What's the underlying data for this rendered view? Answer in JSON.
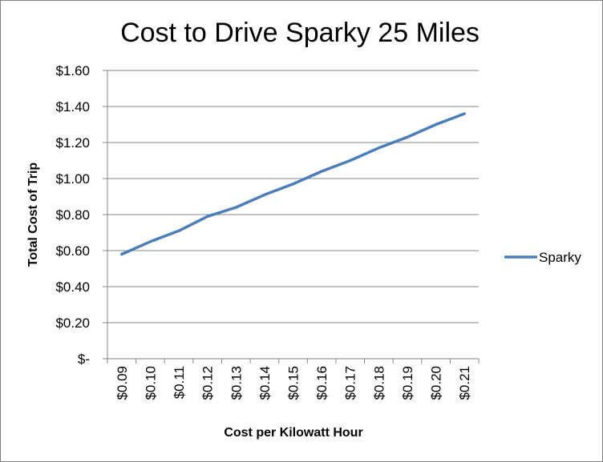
{
  "chart_data": {
    "type": "line",
    "title": "Cost to Drive Sparky 25 Miles",
    "xlabel": "Cost per Kilowatt Hour",
    "ylabel": "Total Cost of Trip",
    "categories": [
      "$0.09",
      "$0.10",
      "$0.11",
      "$0.12",
      "$0.13",
      "$0.14",
      "$0.15",
      "$0.16",
      "$0.17",
      "$0.18",
      "$0.19",
      "$0.20",
      "$0.21"
    ],
    "y_tick_labels": [
      "$-",
      "$0.20",
      "$0.40",
      "$0.60",
      "$0.80",
      "$1.00",
      "$1.20",
      "$1.40",
      "$1.60"
    ],
    "ylim": [
      0,
      1.6
    ],
    "series": [
      {
        "name": "Sparky",
        "color": "#4a7ebb",
        "values": [
          0.58,
          0.65,
          0.71,
          0.79,
          0.84,
          0.91,
          0.97,
          1.04,
          1.1,
          1.17,
          1.23,
          1.3,
          1.36
        ]
      }
    ],
    "grid": true,
    "legend_position": "right"
  }
}
